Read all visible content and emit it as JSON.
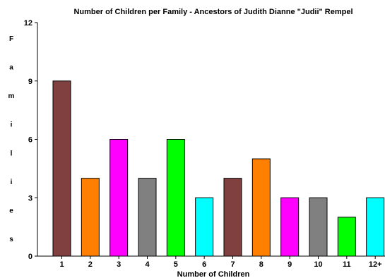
{
  "chart_data": {
    "type": "bar",
    "title": "Number of Children per Family - Ancestors of Judith Dianne \"Judii\" Rempel",
    "xlabel": "Number of Children",
    "ylabel": "Families",
    "categories": [
      "1",
      "2",
      "3",
      "4",
      "5",
      "6",
      "7",
      "8",
      "9",
      "10",
      "11",
      "12+"
    ],
    "values": [
      9,
      4,
      6,
      4,
      6,
      3,
      4,
      5,
      3,
      3,
      2,
      3
    ],
    "colors": [
      "#804040",
      "#ff8000",
      "#ff00ff",
      "#808080",
      "#00ff00",
      "#00ffff",
      "#804040",
      "#ff8000",
      "#ff00ff",
      "#808080",
      "#00ff00",
      "#00ffff"
    ],
    "ylim": [
      0,
      12
    ],
    "yticks": [
      "0",
      "3",
      "6",
      "9",
      "12"
    ],
    "grid": false,
    "legend": "none"
  }
}
